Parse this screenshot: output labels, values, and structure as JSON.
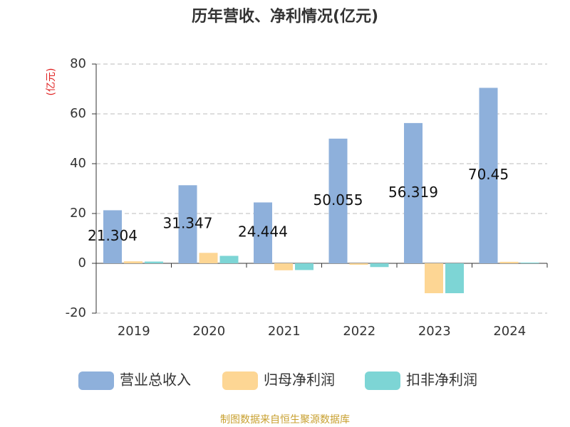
{
  "chart_data": {
    "type": "bar",
    "title": "历年营收、净利情况(亿元)",
    "y_label": "(亿元)",
    "categories": [
      "2019",
      "2020",
      "2021",
      "2022",
      "2023",
      "2024"
    ],
    "series": [
      {
        "name": "营业总收入",
        "color": "#8eb0db",
        "values": [
          21.304,
          31.347,
          24.444,
          50.055,
          56.319,
          70.45
        ],
        "show_labels": true
      },
      {
        "name": "归母净利润",
        "color": "#fdd694",
        "values": [
          0.8,
          4.2,
          -2.8,
          -0.6,
          -12,
          0.6
        ],
        "show_labels": false
      },
      {
        "name": "扣非净利润",
        "color": "#7dd5d5",
        "values": [
          0.7,
          3.0,
          -2.7,
          -1.5,
          -12,
          0.3
        ],
        "show_labels": false
      }
    ],
    "ylim": [
      -20,
      80
    ],
    "yticks": [
      -20,
      0,
      20,
      40,
      60,
      80
    ],
    "grid": true,
    "legend": "bottom",
    "source": "制图数据来自恒生聚源数据库"
  }
}
